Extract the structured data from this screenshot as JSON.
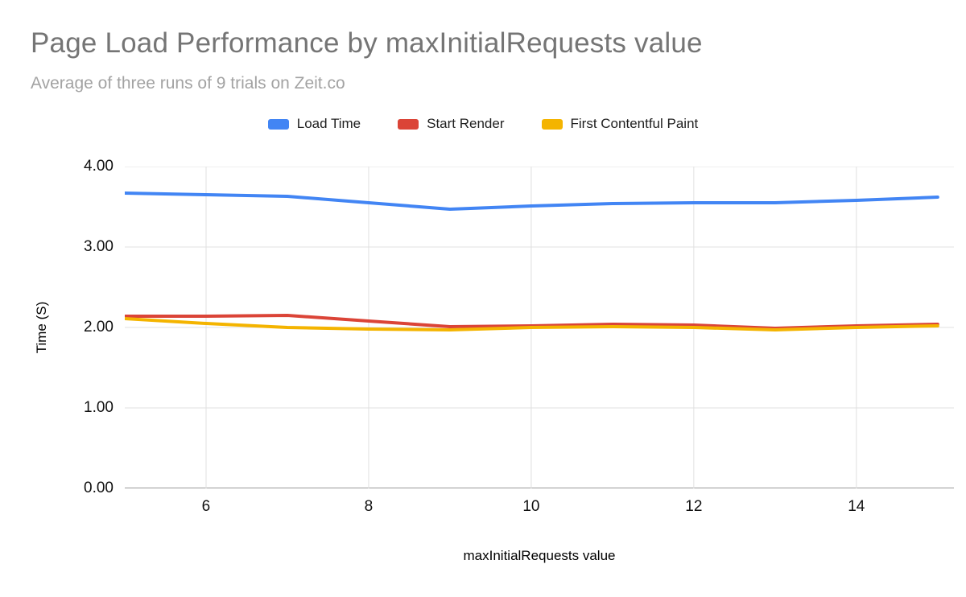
{
  "chart": {
    "title": "Page Load Performance by maxInitialRequests value",
    "subtitle": "Average of three runs of 9 trials on Zeit.co"
  },
  "chart_data": {
    "type": "line",
    "title": "Page Load Performance by maxInitialRequests value",
    "subtitle": "Average of three runs of 9 trials on Zeit.co",
    "xlabel": "maxInitialRequests value",
    "ylabel": "Time (S)",
    "x": [
      5,
      6,
      7,
      8,
      9,
      10,
      11,
      12,
      13,
      14,
      15
    ],
    "series": [
      {
        "name": "Load Time",
        "color": "#4285f4",
        "values": [
          3.67,
          3.65,
          3.63,
          3.55,
          3.47,
          3.51,
          3.54,
          3.55,
          3.55,
          3.58,
          3.62
        ]
      },
      {
        "name": "Start Render",
        "color": "#db4437",
        "values": [
          2.14,
          2.14,
          2.15,
          2.08,
          2.01,
          2.02,
          2.04,
          2.03,
          1.99,
          2.02,
          2.04
        ]
      },
      {
        "name": "First Contentful Paint",
        "color": "#f4b400",
        "values": [
          2.11,
          2.05,
          2.0,
          1.98,
          1.97,
          2.0,
          2.01,
          2.0,
          1.97,
          2.0,
          2.02
        ]
      }
    ],
    "xlim": [
      5,
      15.2
    ],
    "ylim": [
      0,
      4
    ],
    "xticks": [
      6,
      8,
      10,
      12,
      14
    ],
    "xtick_labels": [
      "6",
      "8",
      "10",
      "12",
      "14"
    ],
    "yticks": [
      0,
      1,
      2,
      3,
      4
    ],
    "ytick_labels": [
      "0.00",
      "1.00",
      "2.00",
      "3.00",
      "4.00"
    ],
    "grid": true,
    "legend_position": "top",
    "grid_color": "#e0e0e0",
    "baseline_color": "#333333"
  }
}
